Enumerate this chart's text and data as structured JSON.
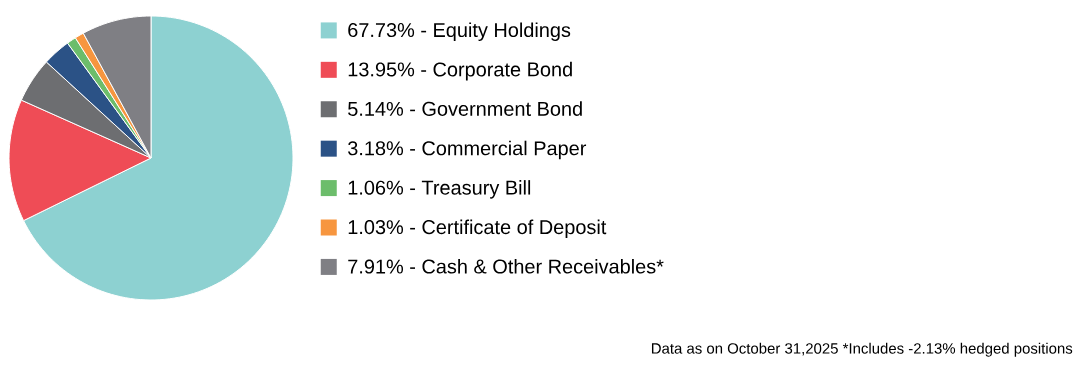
{
  "chart_data": {
    "type": "pie",
    "categories": [
      "67.73% - Equity Holdings",
      "13.95% - Corporate Bond",
      "5.14% - Government Bond",
      "3.18% - Commercial Paper",
      "1.06% - Treasury Bill",
      "1.03% - Certificate of Deposit",
      "7.91% - Cash & Other Receivables*"
    ],
    "values": [
      67.73,
      13.95,
      5.14,
      3.18,
      1.06,
      1.03,
      7.91
    ],
    "colors": [
      "#8dd1d1",
      "#ef4c56",
      "#6d6e71",
      "#2b5286",
      "#6cbd6b",
      "#f7963f",
      "#7f7f84"
    ],
    "legend": "right",
    "annotations": [
      "Data as on October 31,2025 *Includes -2.13% hedged positions"
    ]
  }
}
